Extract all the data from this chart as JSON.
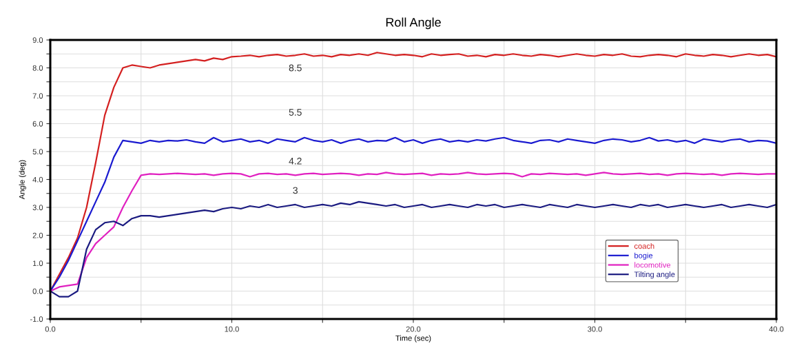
{
  "chart_data": {
    "type": "line",
    "title": "Roll Angle",
    "xlabel": "Time (sec)",
    "ylabel": "Angle (deg)",
    "x": [
      0,
      0.5,
      1,
      1.5,
      2,
      2.5,
      3,
      3.5,
      4,
      4.5,
      5,
      5.5,
      6,
      6.5,
      7,
      7.5,
      8,
      8.5,
      9,
      9.5,
      10,
      10.5,
      11,
      11.5,
      12,
      12.5,
      13,
      13.5,
      14,
      14.5,
      15,
      15.5,
      16,
      16.5,
      17,
      17.5,
      18,
      18.5,
      19,
      19.5,
      20,
      20.5,
      21,
      21.5,
      22,
      22.5,
      23,
      23.5,
      24,
      24.5,
      25,
      25.5,
      26,
      26.5,
      27,
      27.5,
      28,
      28.5,
      29,
      29.5,
      30,
      30.5,
      31,
      31.5,
      32,
      32.5,
      33,
      33.5,
      34,
      34.5,
      35,
      35.5,
      36,
      36.5,
      37,
      37.5,
      38,
      38.5,
      39,
      39.5,
      40
    ],
    "series": [
      {
        "name": "coach",
        "color": "#d42020",
        "values": [
          0,
          0.6,
          1.2,
          1.9,
          3.0,
          4.6,
          6.3,
          7.3,
          8.0,
          8.1,
          8.05,
          8.0,
          8.1,
          8.15,
          8.2,
          8.25,
          8.3,
          8.25,
          8.35,
          8.3,
          8.4,
          8.42,
          8.45,
          8.4,
          8.45,
          8.48,
          8.42,
          8.45,
          8.5,
          8.42,
          8.45,
          8.4,
          8.48,
          8.45,
          8.5,
          8.45,
          8.55,
          8.5,
          8.45,
          8.48,
          8.45,
          8.4,
          8.5,
          8.45,
          8.48,
          8.5,
          8.42,
          8.45,
          8.4,
          8.48,
          8.45,
          8.5,
          8.45,
          8.42,
          8.48,
          8.45,
          8.4,
          8.45,
          8.5,
          8.45,
          8.42,
          8.48,
          8.45,
          8.5,
          8.42,
          8.4,
          8.45,
          8.48,
          8.45,
          8.4,
          8.5,
          8.45,
          8.42,
          8.48,
          8.45,
          8.4,
          8.45,
          8.5,
          8.45,
          8.48,
          8.4
        ]
      },
      {
        "name": "bogie",
        "color": "#1a1ad0",
        "values": [
          0,
          0.5,
          1.1,
          1.8,
          2.5,
          3.2,
          3.9,
          4.8,
          5.4,
          5.35,
          5.3,
          5.4,
          5.35,
          5.4,
          5.38,
          5.42,
          5.35,
          5.3,
          5.5,
          5.35,
          5.4,
          5.45,
          5.35,
          5.4,
          5.3,
          5.45,
          5.4,
          5.35,
          5.5,
          5.4,
          5.35,
          5.42,
          5.3,
          5.4,
          5.45,
          5.35,
          5.4,
          5.38,
          5.5,
          5.35,
          5.42,
          5.3,
          5.4,
          5.45,
          5.35,
          5.4,
          5.35,
          5.42,
          5.38,
          5.45,
          5.5,
          5.4,
          5.35,
          5.3,
          5.4,
          5.42,
          5.35,
          5.45,
          5.4,
          5.35,
          5.3,
          5.4,
          5.45,
          5.42,
          5.35,
          5.4,
          5.5,
          5.38,
          5.42,
          5.35,
          5.4,
          5.3,
          5.45,
          5.4,
          5.35,
          5.42,
          5.45,
          5.35,
          5.4,
          5.38,
          5.3
        ]
      },
      {
        "name": "locomotive",
        "color": "#e020c0",
        "values": [
          0,
          0.15,
          0.2,
          0.25,
          1.2,
          1.7,
          2.0,
          2.3,
          3.0,
          3.6,
          4.15,
          4.2,
          4.18,
          4.2,
          4.22,
          4.2,
          4.18,
          4.2,
          4.15,
          4.2,
          4.22,
          4.2,
          4.1,
          4.2,
          4.22,
          4.18,
          4.2,
          4.15,
          4.2,
          4.22,
          4.18,
          4.2,
          4.22,
          4.2,
          4.15,
          4.2,
          4.18,
          4.25,
          4.2,
          4.18,
          4.2,
          4.22,
          4.15,
          4.2,
          4.18,
          4.2,
          4.25,
          4.2,
          4.18,
          4.2,
          4.22,
          4.2,
          4.1,
          4.2,
          4.18,
          4.22,
          4.2,
          4.18,
          4.2,
          4.15,
          4.2,
          4.25,
          4.2,
          4.18,
          4.2,
          4.22,
          4.18,
          4.2,
          4.15,
          4.2,
          4.22,
          4.2,
          4.18,
          4.2,
          4.15,
          4.2,
          4.22,
          4.2,
          4.18,
          4.2,
          4.2
        ]
      },
      {
        "name": "Tilting angle",
        "color": "#1a1a80",
        "values": [
          0,
          -0.2,
          -0.2,
          0.0,
          1.5,
          2.2,
          2.45,
          2.5,
          2.35,
          2.6,
          2.7,
          2.7,
          2.65,
          2.7,
          2.75,
          2.8,
          2.85,
          2.9,
          2.85,
          2.95,
          3.0,
          2.95,
          3.05,
          3.0,
          3.1,
          3.0,
          3.05,
          3.1,
          3.0,
          3.05,
          3.1,
          3.05,
          3.15,
          3.1,
          3.2,
          3.15,
          3.1,
          3.05,
          3.1,
          3.0,
          3.05,
          3.1,
          3.0,
          3.05,
          3.1,
          3.05,
          3.0,
          3.1,
          3.05,
          3.1,
          3.0,
          3.05,
          3.1,
          3.05,
          3.0,
          3.1,
          3.05,
          3.0,
          3.1,
          3.05,
          3.0,
          3.05,
          3.1,
          3.05,
          3.0,
          3.1,
          3.05,
          3.1,
          3.0,
          3.05,
          3.1,
          3.05,
          3.0,
          3.05,
          3.1,
          3.0,
          3.05,
          3.1,
          3.05,
          3.0,
          3.1
        ]
      }
    ],
    "xlim": [
      0,
      40
    ],
    "xticks": [
      {
        "value": 0,
        "label": "0.0"
      },
      {
        "value": 5,
        "label": null
      },
      {
        "value": 10,
        "label": "10.0"
      },
      {
        "value": 15,
        "label": null
      },
      {
        "value": 20,
        "label": "20.0"
      },
      {
        "value": 25,
        "label": null
      },
      {
        "value": 30,
        "label": "30.0"
      },
      {
        "value": 35,
        "label": null
      },
      {
        "value": 40,
        "label": "40.0"
      }
    ],
    "ylim": [
      -1,
      9
    ],
    "yticks": [
      {
        "value": -1,
        "label": "-1.0"
      },
      {
        "value": -0.5,
        "label": null
      },
      {
        "value": 0,
        "label": "0.0"
      },
      {
        "value": 0.5,
        "label": null
      },
      {
        "value": 1,
        "label": "1.0"
      },
      {
        "value": 1.5,
        "label": null
      },
      {
        "value": 2,
        "label": "2.0"
      },
      {
        "value": 2.5,
        "label": null
      },
      {
        "value": 3,
        "label": "3.0"
      },
      {
        "value": 3.5,
        "label": null
      },
      {
        "value": 4,
        "label": "4.0"
      },
      {
        "value": 4.5,
        "label": null
      },
      {
        "value": 5,
        "label": "5.0"
      },
      {
        "value": 5.5,
        "label": null
      },
      {
        "value": 6,
        "label": "6.0"
      },
      {
        "value": 6.5,
        "label": null
      },
      {
        "value": 7,
        "label": "7.0"
      },
      {
        "value": 7.5,
        "label": null
      },
      {
        "value": 8,
        "label": "8.0"
      },
      {
        "value": 8.5,
        "label": null
      },
      {
        "value": 9,
        "label": "9.0"
      }
    ],
    "annotations": [
      "8.5",
      "5.5",
      "4.2",
      "3"
    ],
    "grid": true,
    "legend": "bottom right",
    "marker": "none",
    "line_style": "solid"
  }
}
